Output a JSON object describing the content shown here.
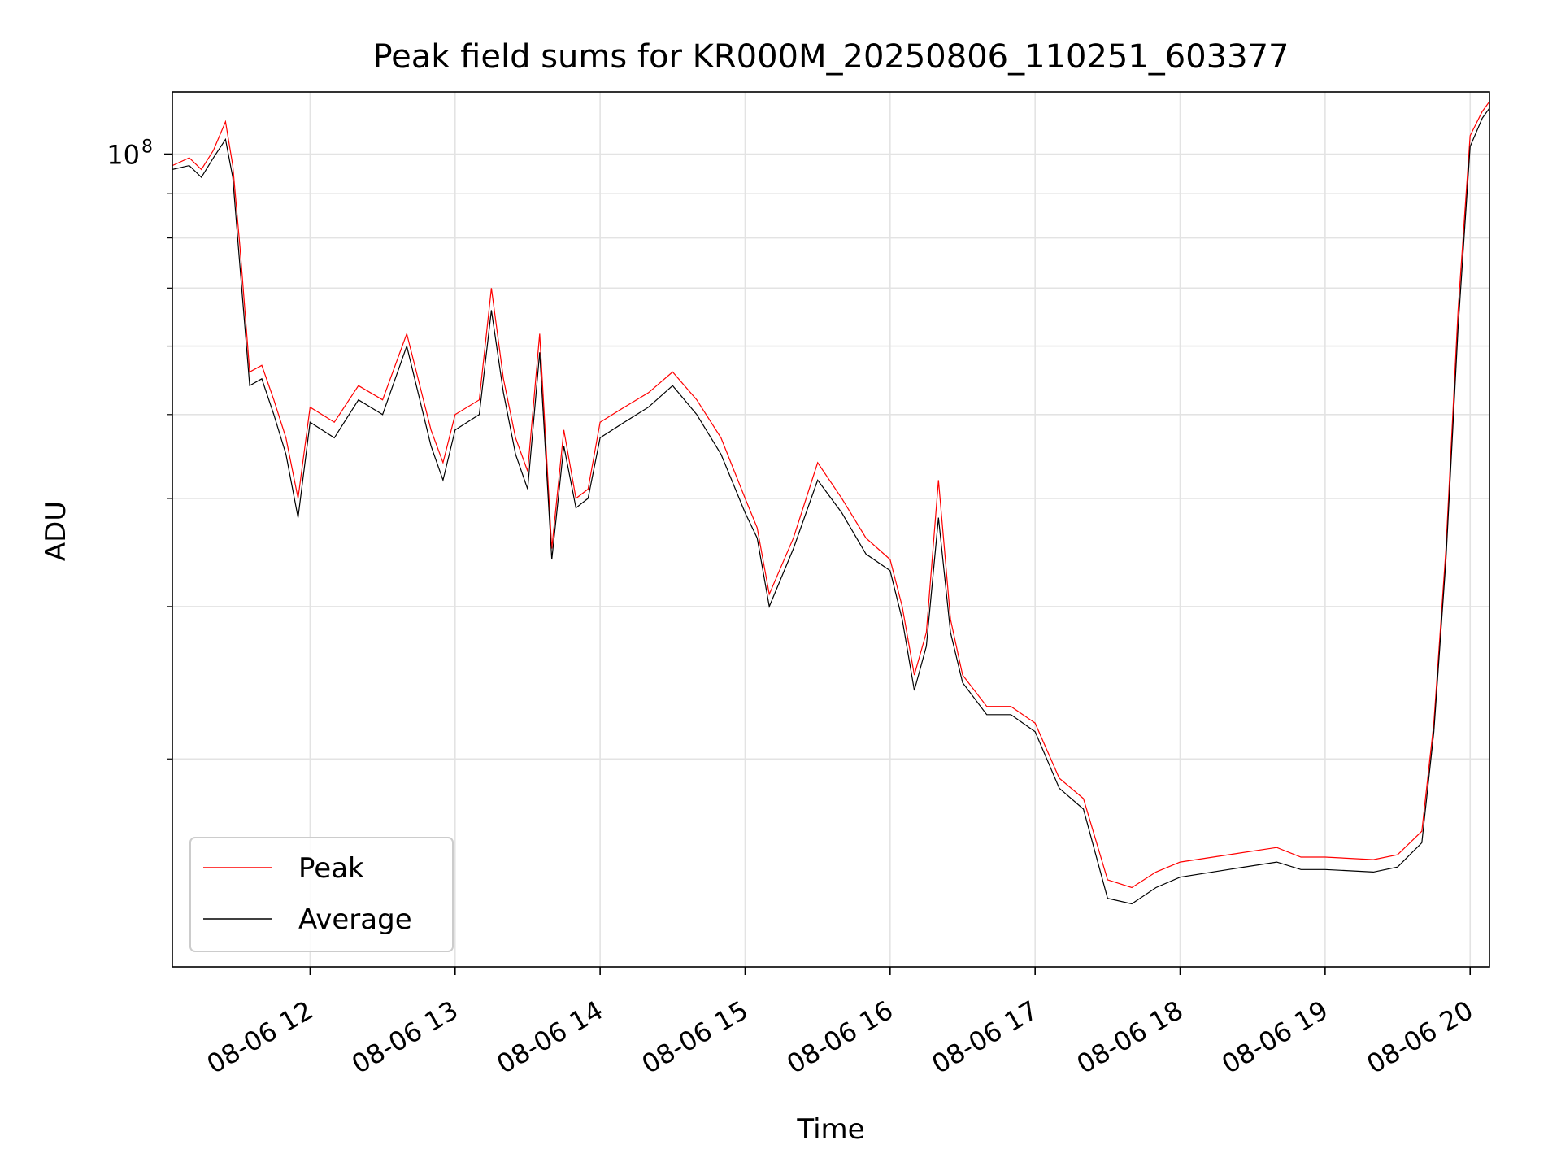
{
  "chart_data": {
    "type": "line",
    "title": "Peak field sums for KR000M_20250806_110251_603377",
    "xlabel": "Time",
    "ylabel": "ADU",
    "y_scale": "log",
    "ylim": [
      11500000,
      118000000
    ],
    "xlim": [
      "2025-08-06 11:03",
      "2025-08-06 20:08"
    ],
    "grid": true,
    "legend_position": "lower-left",
    "x_ticks": [
      {
        "t": "2025-08-06 12:00",
        "label": "08-06 12"
      },
      {
        "t": "2025-08-06 13:00",
        "label": "08-06 13"
      },
      {
        "t": "2025-08-06 14:00",
        "label": "08-06 14"
      },
      {
        "t": "2025-08-06 15:00",
        "label": "08-06 15"
      },
      {
        "t": "2025-08-06 16:00",
        "label": "08-06 16"
      },
      {
        "t": "2025-08-06 17:00",
        "label": "08-06 17"
      },
      {
        "t": "2025-08-06 18:00",
        "label": "08-06 18"
      },
      {
        "t": "2025-08-06 19:00",
        "label": "08-06 19"
      },
      {
        "t": "2025-08-06 20:00",
        "label": "08-06 20"
      }
    ],
    "y_major_ticks": [
      {
        "value": 100000000,
        "label_base": "10",
        "label_exp": "8"
      }
    ],
    "y_minor_ticks": [
      20000000,
      30000000,
      40000000,
      50000000,
      60000000,
      70000000,
      80000000,
      90000000
    ],
    "series": [
      {
        "name": "Peak",
        "color": "#ff0000",
        "x": [
          "2025-08-06 11:03",
          "2025-08-06 11:10",
          "2025-08-06 11:15",
          "2025-08-06 11:20",
          "2025-08-06 11:25",
          "2025-08-06 11:28",
          "2025-08-06 11:31",
          "2025-08-06 11:35",
          "2025-08-06 11:40",
          "2025-08-06 11:45",
          "2025-08-06 11:50",
          "2025-08-06 11:55",
          "2025-08-06 12:00",
          "2025-08-06 12:10",
          "2025-08-06 12:20",
          "2025-08-06 12:30",
          "2025-08-06 12:40",
          "2025-08-06 12:50",
          "2025-08-06 12:55",
          "2025-08-06 13:00",
          "2025-08-06 13:10",
          "2025-08-06 13:15",
          "2025-08-06 13:20",
          "2025-08-06 13:25",
          "2025-08-06 13:30",
          "2025-08-06 13:35",
          "2025-08-06 13:40",
          "2025-08-06 13:45",
          "2025-08-06 13:50",
          "2025-08-06 13:55",
          "2025-08-06 14:00",
          "2025-08-06 14:10",
          "2025-08-06 14:20",
          "2025-08-06 14:30",
          "2025-08-06 14:40",
          "2025-08-06 14:50",
          "2025-08-06 15:00",
          "2025-08-06 15:05",
          "2025-08-06 15:10",
          "2025-08-06 15:20",
          "2025-08-06 15:30",
          "2025-08-06 15:40",
          "2025-08-06 15:50",
          "2025-08-06 16:00",
          "2025-08-06 16:05",
          "2025-08-06 16:10",
          "2025-08-06 16:15",
          "2025-08-06 16:20",
          "2025-08-06 16:25",
          "2025-08-06 16:30",
          "2025-08-06 16:40",
          "2025-08-06 16:50",
          "2025-08-06 17:00",
          "2025-08-06 17:10",
          "2025-08-06 17:20",
          "2025-08-06 17:30",
          "2025-08-06 17:40",
          "2025-08-06 17:50",
          "2025-08-06 18:00",
          "2025-08-06 18:20",
          "2025-08-06 18:40",
          "2025-08-06 18:50",
          "2025-08-06 19:00",
          "2025-08-06 19:20",
          "2025-08-06 19:30",
          "2025-08-06 19:40",
          "2025-08-06 19:45",
          "2025-08-06 19:50",
          "2025-08-06 19:55",
          "2025-08-06 20:00",
          "2025-08-06 20:05",
          "2025-08-06 20:08"
        ],
        "y": [
          97000000,
          99000000,
          96000000,
          101000000,
          109000000,
          97000000,
          78000000,
          56000000,
          57000000,
          52000000,
          47000000,
          40000000,
          51000000,
          49000000,
          54000000,
          52000000,
          62000000,
          48000000,
          44000000,
          50000000,
          52000000,
          70000000,
          55000000,
          47000000,
          43000000,
          62000000,
          35000000,
          48000000,
          40000000,
          41000000,
          49000000,
          51000000,
          53000000,
          56000000,
          52000000,
          47000000,
          40000000,
          37000000,
          31000000,
          36000000,
          44000000,
          40000000,
          36000000,
          34000000,
          30000000,
          25000000,
          28000000,
          42000000,
          29000000,
          25000000,
          23000000,
          23000000,
          22000000,
          19000000,
          18000000,
          14500000,
          14200000,
          14800000,
          15200000,
          15500000,
          15800000,
          15400000,
          15400000,
          15300000,
          15500000,
          16500000,
          22000000,
          35000000,
          66000000,
          105000000,
          112000000,
          115000000
        ]
      },
      {
        "name": "Average",
        "color": "#000000",
        "x": [
          "2025-08-06 11:03",
          "2025-08-06 11:10",
          "2025-08-06 11:15",
          "2025-08-06 11:20",
          "2025-08-06 11:25",
          "2025-08-06 11:28",
          "2025-08-06 11:31",
          "2025-08-06 11:35",
          "2025-08-06 11:40",
          "2025-08-06 11:45",
          "2025-08-06 11:50",
          "2025-08-06 11:55",
          "2025-08-06 12:00",
          "2025-08-06 12:10",
          "2025-08-06 12:20",
          "2025-08-06 12:30",
          "2025-08-06 12:40",
          "2025-08-06 12:50",
          "2025-08-06 12:55",
          "2025-08-06 13:00",
          "2025-08-06 13:10",
          "2025-08-06 13:15",
          "2025-08-06 13:20",
          "2025-08-06 13:25",
          "2025-08-06 13:30",
          "2025-08-06 13:35",
          "2025-08-06 13:40",
          "2025-08-06 13:45",
          "2025-08-06 13:50",
          "2025-08-06 13:55",
          "2025-08-06 14:00",
          "2025-08-06 14:10",
          "2025-08-06 14:20",
          "2025-08-06 14:30",
          "2025-08-06 14:40",
          "2025-08-06 14:50",
          "2025-08-06 15:00",
          "2025-08-06 15:05",
          "2025-08-06 15:10",
          "2025-08-06 15:20",
          "2025-08-06 15:30",
          "2025-08-06 15:40",
          "2025-08-06 15:50",
          "2025-08-06 16:00",
          "2025-08-06 16:05",
          "2025-08-06 16:10",
          "2025-08-06 16:15",
          "2025-08-06 16:20",
          "2025-08-06 16:25",
          "2025-08-06 16:30",
          "2025-08-06 16:40",
          "2025-08-06 16:50",
          "2025-08-06 17:00",
          "2025-08-06 17:10",
          "2025-08-06 17:20",
          "2025-08-06 17:30",
          "2025-08-06 17:40",
          "2025-08-06 17:50",
          "2025-08-06 18:00",
          "2025-08-06 18:20",
          "2025-08-06 18:40",
          "2025-08-06 18:50",
          "2025-08-06 19:00",
          "2025-08-06 19:20",
          "2025-08-06 19:30",
          "2025-08-06 19:40",
          "2025-08-06 19:45",
          "2025-08-06 19:50",
          "2025-08-06 19:55",
          "2025-08-06 20:00",
          "2025-08-06 20:05",
          "2025-08-06 20:08"
        ],
        "y": [
          96000000,
          97000000,
          94000000,
          99000000,
          104000000,
          94000000,
          74000000,
          54000000,
          55000000,
          50000000,
          45000000,
          38000000,
          49000000,
          47000000,
          52000000,
          50000000,
          60000000,
          46000000,
          42000000,
          48000000,
          50000000,
          66000000,
          53000000,
          45000000,
          41000000,
          59000000,
          34000000,
          46000000,
          39000000,
          40000000,
          47000000,
          49000000,
          51000000,
          54000000,
          50000000,
          45000000,
          38500000,
          36000000,
          30000000,
          35000000,
          42000000,
          38500000,
          34500000,
          33000000,
          29000000,
          24000000,
          27000000,
          38000000,
          28000000,
          24500000,
          22500000,
          22500000,
          21500000,
          18500000,
          17500000,
          13800000,
          13600000,
          14200000,
          14600000,
          14900000,
          15200000,
          14900000,
          14900000,
          14800000,
          15000000,
          16000000,
          21500000,
          34000000,
          63000000,
          102000000,
          110000000,
          113000000
        ]
      }
    ]
  }
}
